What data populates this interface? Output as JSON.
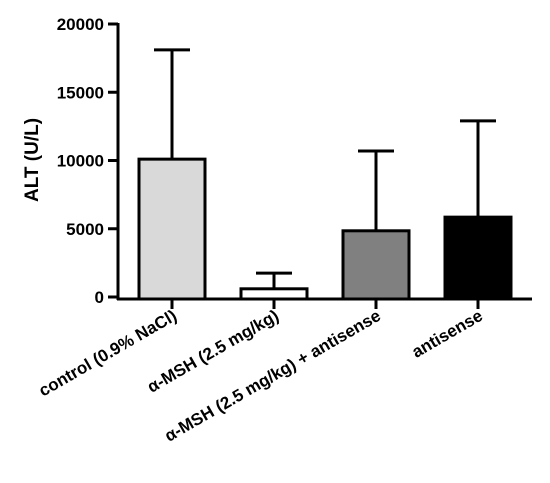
{
  "chart_data": {
    "type": "bar",
    "title": "",
    "xlabel": "",
    "ylabel": "ALT (U/L)",
    "ylim": [
      0,
      20000
    ],
    "yticks": [
      0,
      5000,
      10000,
      15000,
      20000
    ],
    "yticks_labels": [
      "0",
      "5000",
      "10000",
      "15000",
      "20000"
    ],
    "categories": [
      "control (0.9% NaCl)",
      "α-MSH (2.5 mg/kg)",
      "α-MSH (2.5 mg/kg) + antisense",
      "antisense"
    ],
    "values": [
      10100,
      600,
      4850,
      5850
    ],
    "error_upper": [
      18100,
      1750,
      10700,
      12900
    ],
    "colors": [
      "#d9d9d9",
      "#ffffff",
      "#808080",
      "#000000"
    ],
    "grid": false,
    "legend": "none"
  }
}
